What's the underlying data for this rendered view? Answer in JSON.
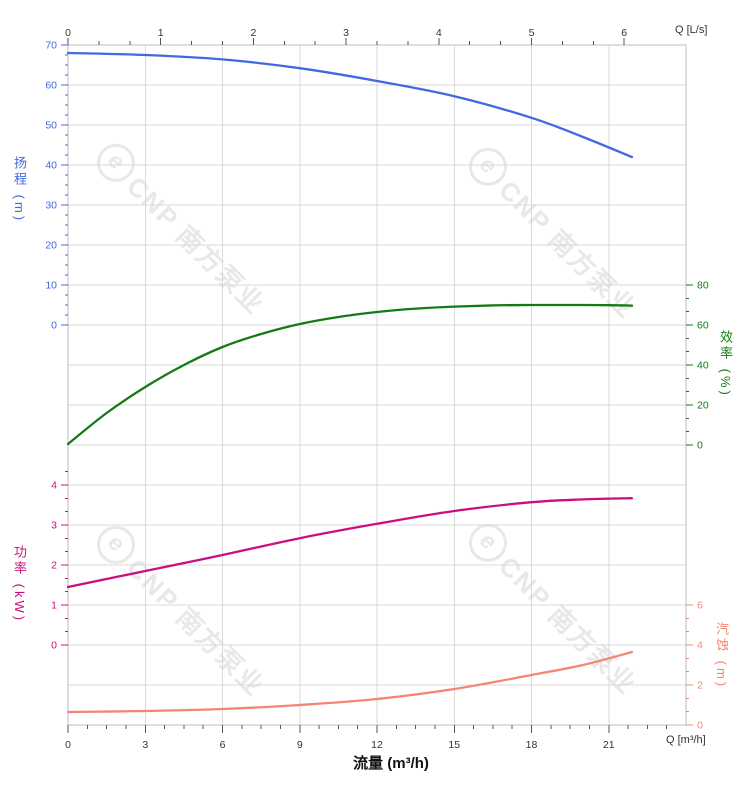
{
  "watermark": {
    "logo_glyph": "e",
    "text": "CNP 南方泵业"
  },
  "styles": {
    "grid_color": "#d9d9d9",
    "frame_color": "#bdbdbd",
    "xtick_color": "#555555",
    "xlabel_color": "#333333"
  },
  "chart_data": {
    "type": "line",
    "grid": true,
    "legend": "none",
    "x_axes": {
      "top": {
        "label": "Q [L/s]",
        "unit": "L/s",
        "ticks": [
          0,
          1,
          2,
          3,
          4,
          5,
          6
        ],
        "range": [
          0,
          6.67
        ]
      },
      "bottom": {
        "label": "Q [m³/h]",
        "unit": "m³/h",
        "title": "流量 (m³/h)",
        "ticks": [
          0,
          3,
          6,
          9,
          12,
          15,
          18,
          21
        ],
        "range": [
          0,
          24
        ]
      }
    },
    "y_axes": {
      "head": {
        "label": "扬程 (m)",
        "side": "left",
        "ticks": [
          70,
          60,
          50,
          40,
          30,
          20,
          10,
          0
        ],
        "range": [
          0,
          70
        ],
        "color": "#4169e1"
      },
      "eff": {
        "label": "效率 (%)",
        "side": "right",
        "ticks": [
          80,
          60,
          40,
          20,
          0
        ],
        "range": [
          0,
          80
        ],
        "color": "#147a14"
      },
      "power": {
        "label": "功率 (kW)",
        "side": "left",
        "ticks": [
          4,
          3,
          2,
          1,
          0
        ],
        "range": [
          0,
          4
        ],
        "color": "#c8117e"
      },
      "npsh": {
        "label": "汽蚀 (m)",
        "side": "right",
        "ticks": [
          6,
          4,
          2,
          0
        ],
        "range": [
          0,
          6
        ],
        "color": "#f58573"
      }
    },
    "series": [
      {
        "id": "head",
        "name": "扬程",
        "axis": "head",
        "color": "#4169e1",
        "points": [
          [
            0,
            68
          ],
          [
            3,
            67.5
          ],
          [
            6,
            66.4
          ],
          [
            9,
            64.2
          ],
          [
            12,
            61
          ],
          [
            15,
            57.2
          ],
          [
            18,
            51.8
          ],
          [
            20,
            47
          ],
          [
            21.9,
            42
          ]
        ]
      },
      {
        "id": "efficiency",
        "name": "效率",
        "axis": "eff",
        "color": "#147a14",
        "points": [
          [
            0,
            0.5
          ],
          [
            1.5,
            16
          ],
          [
            3,
            29
          ],
          [
            4.5,
            40
          ],
          [
            6,
            49
          ],
          [
            7.5,
            55.5
          ],
          [
            9,
            60.5
          ],
          [
            10.5,
            64
          ],
          [
            12,
            66.5
          ],
          [
            13.5,
            68.2
          ],
          [
            15,
            69.2
          ],
          [
            16.5,
            69.8
          ],
          [
            18,
            70
          ],
          [
            19.5,
            70
          ],
          [
            21,
            69.9
          ],
          [
            21.9,
            69.7
          ]
        ]
      },
      {
        "id": "power",
        "name": "功率",
        "axis": "power",
        "color": "#c8117e",
        "points": [
          [
            0,
            1.45
          ],
          [
            3,
            1.85
          ],
          [
            6,
            2.25
          ],
          [
            9,
            2.67
          ],
          [
            12,
            3.03
          ],
          [
            15,
            3.35
          ],
          [
            18,
            3.57
          ],
          [
            20,
            3.64
          ],
          [
            21.9,
            3.67
          ]
        ]
      },
      {
        "id": "npsh",
        "name": "汽蚀",
        "axis": "npsh",
        "color": "#f58573",
        "points": [
          [
            0,
            0.65
          ],
          [
            3,
            0.7
          ],
          [
            6,
            0.8
          ],
          [
            9,
            1.0
          ],
          [
            12,
            1.3
          ],
          [
            15,
            1.8
          ],
          [
            18,
            2.5
          ],
          [
            20,
            3.0
          ],
          [
            21.9,
            3.65
          ]
        ]
      }
    ]
  }
}
